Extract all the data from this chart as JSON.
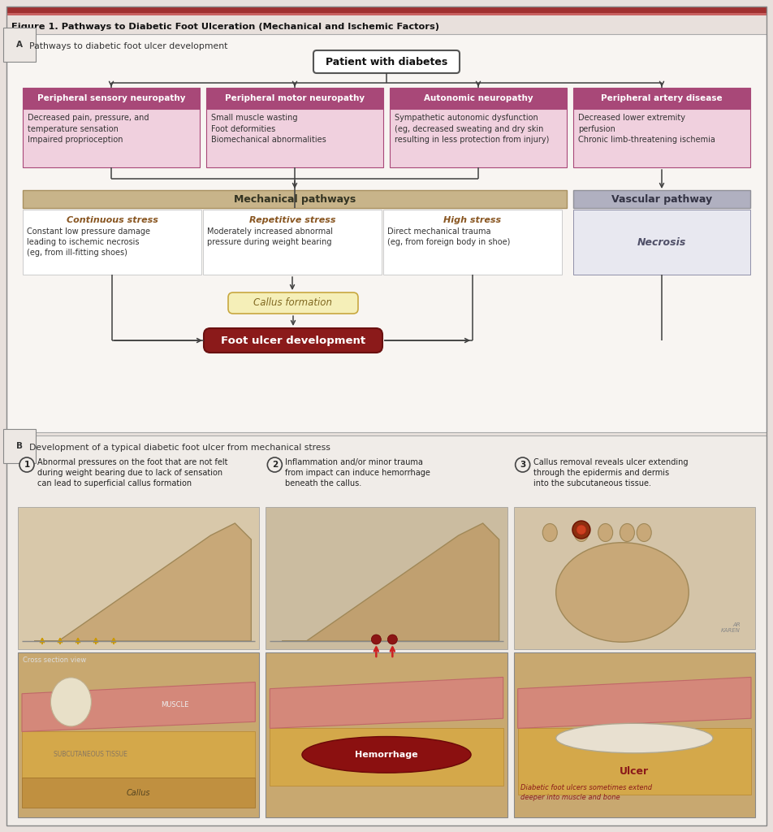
{
  "figure_title": "Figure 1. Pathways to Diabetic Foot Ulceration (Mechanical and Ischemic Factors)",
  "title_bar_color": "#a03030",
  "bg_outer": "#e8e0dc",
  "bg_panel": "#f8f5f2",
  "bg_panelB": "#f0ece8",
  "panel_a_label": "Pathways to diabetic foot ulcer development",
  "panel_b_label": "Development of a typical diabetic foot ulcer from mechanical stress",
  "patient_box": {
    "text": "Patient with diabetes",
    "fc": "#ffffff",
    "ec": "#555555"
  },
  "neuro_titles": [
    "Peripheral sensory neuropathy",
    "Peripheral motor neuropathy",
    "Autonomic neuropathy",
    "Peripheral artery disease"
  ],
  "neuro_bodies": [
    "Decreased pain, pressure, and\ntemperature sensation\nImpaired proprioception",
    "Small muscle wasting\nFoot deformities\nBiomechanical abnormalities",
    "Sympathetic autonomic dysfunction\n(eg, decreased sweating and dry skin\nresulting in less protection from injury)",
    "Decreased lower extremity\nperfusion\nChronic limb-threatening ischemia"
  ],
  "neuro_title_fc": "#a84878",
  "neuro_body_fc": "#f0d0de",
  "neuro_ec": "#a84878",
  "mech_header_fc": "#c8b48a",
  "mech_header_ec": "#a89060",
  "vasc_header_fc": "#b0b0c0",
  "vasc_header_ec": "#909098",
  "stress_titles": [
    "Continuous stress",
    "Repetitive stress",
    "High stress"
  ],
  "stress_bodies": [
    "Constant low pressure damage\nleading to ischemic necrosis\n(eg, from ill-fitting shoes)",
    "Moderately increased abnormal\npressure during weight bearing",
    "Direct mechanical trauma\n(eg, from foreign body in shoe)"
  ],
  "stress_title_color": "#885520",
  "necrosis_text": "Necrosis",
  "necrosis_fc": "#e8e8f0",
  "necrosis_ec": "#9090a8",
  "necrosis_tc": "#505068",
  "callus_text": "Callus formation",
  "callus_fc": "#f5efb8",
  "callus_ec": "#c8a840",
  "callus_tc": "#806820",
  "ulcer_text": "Foot ulcer development",
  "ulcer_fc": "#8b1a1a",
  "ulcer_ec": "#6a1010",
  "step_captions": [
    "¹ Abnormal pressures on the foot that are not felt\n  during weight bearing due to lack of sensation\n  can lead to superficial callus formation",
    "² Inflammation and/or minor trauma\n  from impact can induce hemorrhage\n  beneath the callus.",
    "³ Callus removal reveals ulcer extending\n  through the epidermis and dermis\n  into the subcutaneous tissue."
  ],
  "arrow_color": "#404040",
  "line_color": "#404040"
}
